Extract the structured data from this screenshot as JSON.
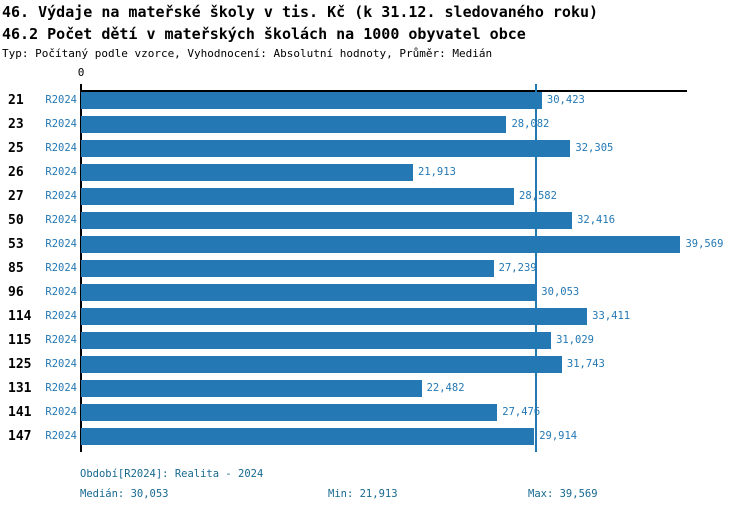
{
  "header": {
    "title_line1": "46. Výdaje na mateřské školy v tis. Kč (k 31.12. sledovaného roku)",
    "title_line2": "46.2 Počet dětí v mateřských školách na 1000 obyvatel obce",
    "meta": "Typ: Počítaný podle vzorce, Vyhodnocení: Absolutní hodnoty, Průměr: Medián"
  },
  "chart_data": {
    "type": "bar",
    "orientation": "horizontal",
    "title": "46. Výdaje na mateřské školy v tis. Kč (k 31.12. sledovaného roku)",
    "subtitle": "46.2 Počet dětí v mateřských školách na 1000 obyvatel obce",
    "categories": [
      "21",
      "23",
      "25",
      "26",
      "27",
      "50",
      "53",
      "85",
      "96",
      "114",
      "115",
      "125",
      "131",
      "141",
      "147"
    ],
    "series": [
      {
        "name": "R2024",
        "values": [
          30423,
          28082,
          32305,
          21913,
          28582,
          32416,
          39569,
          27239,
          30053,
          33411,
          31029,
          31743,
          22482,
          27476,
          29914
        ],
        "value_labels": [
          "30,423",
          "28,082",
          "32,305",
          "21,913",
          "28,582",
          "32,416",
          "39,569",
          "27,239",
          "30,053",
          "33,411",
          "31,029",
          "31,743",
          "22,482",
          "27,476",
          "29,914"
        ]
      }
    ],
    "xlim": [
      0,
      40000
    ],
    "x_tick_labels": [
      "0"
    ],
    "grid": false,
    "median_line_value": 30053,
    "bar_color": "#2478b4",
    "legend_position": "none"
  },
  "footer": {
    "period": "Období[R2024]: Realita - 2024",
    "median": "Medián: 30,053",
    "min": "Min: 21,913",
    "max": "Max: 39,569"
  },
  "colors": {
    "bar": "#2478b4",
    "value_label": "#2478b4",
    "period_label": "#2478b4",
    "footer_text": "#17698f",
    "axis": "#000000"
  }
}
